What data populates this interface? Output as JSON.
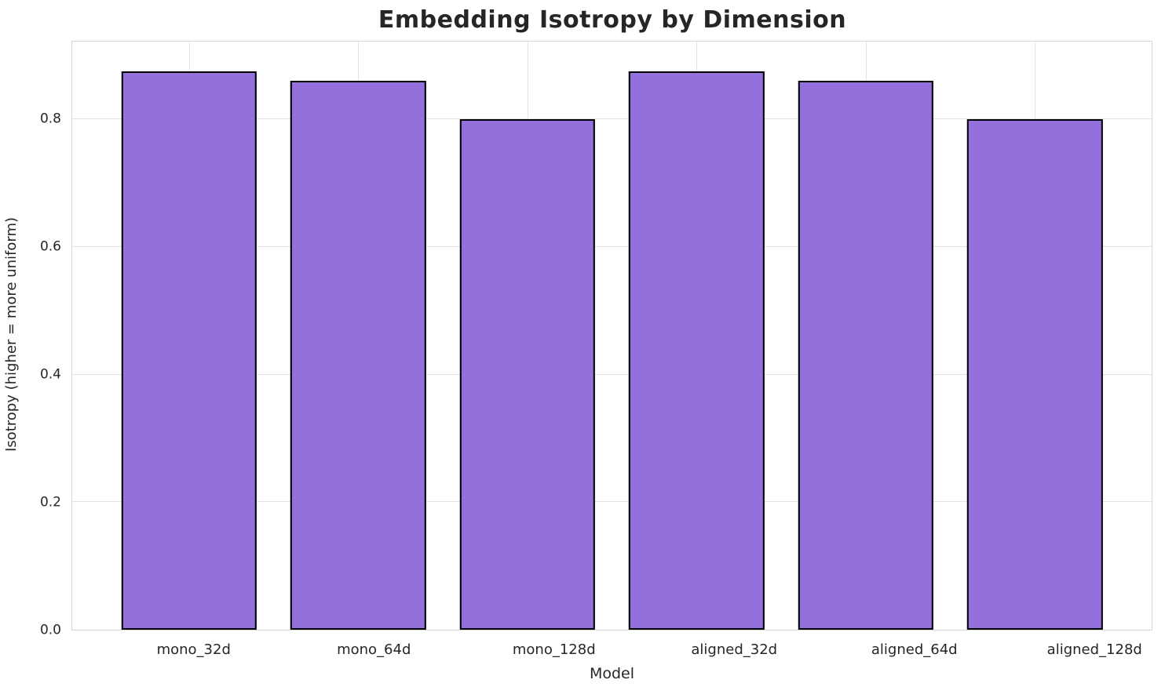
{
  "chart_data": {
    "type": "bar",
    "title": "Embedding Isotropy by Dimension",
    "xlabel": "Model",
    "ylabel": "Isotropy (higher = more uniform)",
    "categories": [
      "mono_32d",
      "mono_64d",
      "mono_128d",
      "aligned_32d",
      "aligned_64d",
      "aligned_128d"
    ],
    "values": [
      0.875,
      0.86,
      0.8,
      0.875,
      0.86,
      0.8
    ],
    "ylim": [
      0,
      0.922
    ],
    "yticks": [
      0.0,
      0.2,
      0.4,
      0.6,
      0.8
    ],
    "ytick_labels": [
      "0.0",
      "0.2",
      "0.4",
      "0.6",
      "0.8"
    ],
    "grid": true,
    "legend": "none"
  },
  "colors": {
    "background": "#ffffff",
    "bar_fill": "#9370DB",
    "bar_edge": "#000000",
    "grid_line": "#e2e2e2",
    "spine": "#d6d6d6",
    "text": "#262626"
  }
}
